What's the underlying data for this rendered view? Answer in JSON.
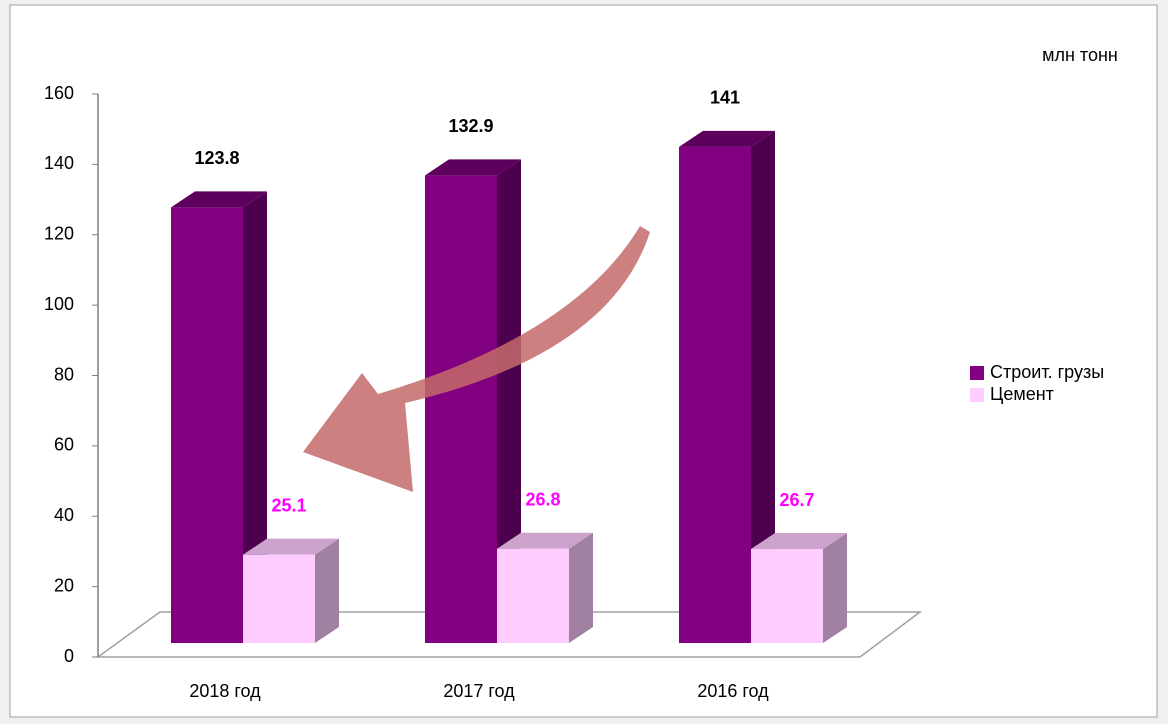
{
  "chart_data": {
    "type": "bar3d",
    "unit_label": "млн тонн",
    "categories": [
      "2018 год",
      "2017 год",
      "2016 год"
    ],
    "series": [
      {
        "name": "Строит. грузы",
        "color": "#800080",
        "values": [
          123.8,
          132.9,
          141
        ]
      },
      {
        "name": "Цемент",
        "color": "#ffccff",
        "values": [
          25.1,
          26.8,
          26.7
        ]
      }
    ],
    "ylim": [
      0,
      160
    ],
    "yticks": [
      0,
      20,
      40,
      60,
      80,
      100,
      120,
      140,
      160
    ],
    "legend": "right"
  }
}
